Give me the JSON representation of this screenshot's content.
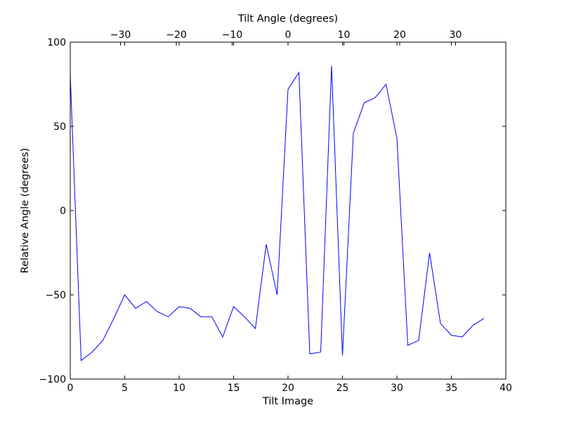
{
  "chart_data": {
    "type": "line",
    "xlabel": "Tilt Image",
    "ylabel": "Relative Angle (degrees)",
    "top_xlabel": "Tilt Angle (degrees)",
    "xlim": [
      0,
      40
    ],
    "ylim": [
      -100,
      100
    ],
    "top_xlim": [
      -39,
      39
    ],
    "grid": false,
    "x_ticks": [
      0,
      5,
      10,
      15,
      20,
      25,
      30,
      35,
      40
    ],
    "y_ticks": [
      -100,
      -50,
      0,
      50,
      100
    ],
    "top_x_ticks": [
      -30,
      -20,
      -10,
      0,
      10,
      20,
      30
    ],
    "x_tick_labels": [
      "0",
      "5",
      "10",
      "15",
      "20",
      "25",
      "30",
      "35",
      "40"
    ],
    "y_tick_labels": [
      "−100",
      "−50",
      "0",
      "50",
      "100"
    ],
    "top_x_tick_labels": [
      "−30",
      "−20",
      "−10",
      "0",
      "10",
      "20",
      "30"
    ],
    "series": [
      {
        "color": "#0000ff",
        "x": [
          0,
          1,
          2,
          3,
          4,
          5,
          6,
          7,
          8,
          9,
          10,
          11,
          12,
          13,
          14,
          15,
          16,
          17,
          18,
          19,
          20,
          21,
          22,
          23,
          24,
          25,
          26,
          27,
          28,
          29,
          30,
          31,
          32,
          33,
          34,
          35,
          36,
          37,
          38
        ],
        "y": [
          81,
          -89,
          -84,
          -77,
          -64,
          -50,
          -58,
          -54,
          -60,
          -63,
          -57,
          -58,
          -63,
          -63,
          -75,
          -57,
          -63,
          -70,
          -20,
          -50,
          72,
          82,
          -85,
          -84,
          86,
          -86,
          46,
          64,
          67,
          75,
          43,
          -80,
          -77,
          -25,
          -67,
          -74,
          -75,
          -68,
          -64
        ]
      }
    ]
  }
}
